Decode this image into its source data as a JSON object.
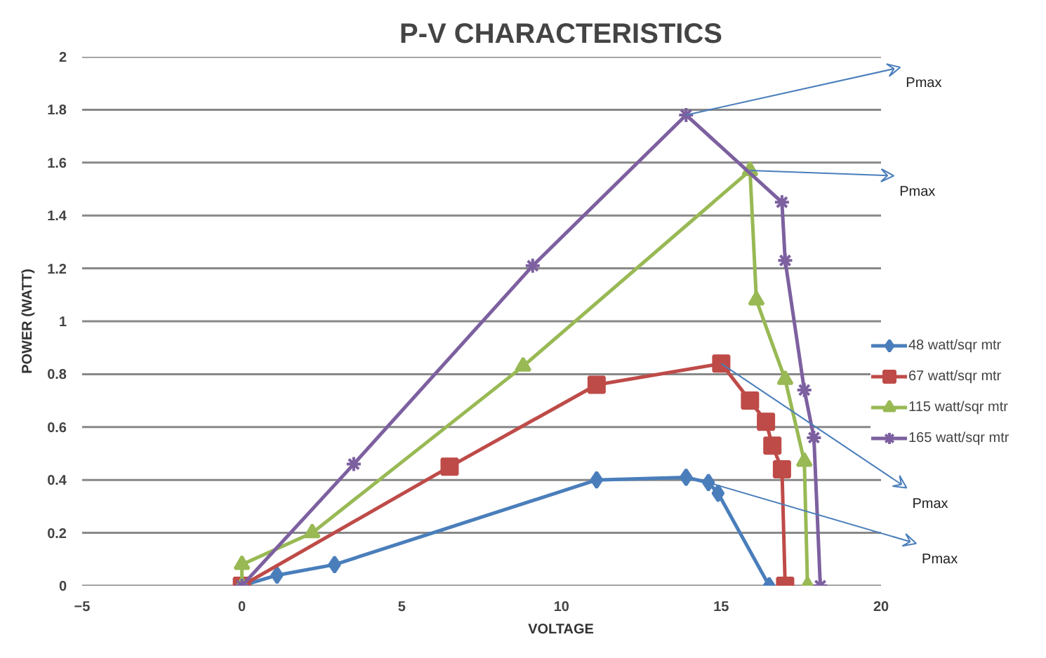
{
  "chart_data": {
    "type": "line",
    "title": "P-V CHARACTERISTICS",
    "xlabel": "VOLTAGE",
    "ylabel": "POWER (WATT)",
    "xlim": [
      -5,
      20
    ],
    "xticks": [
      -5,
      0,
      5,
      10,
      15,
      20
    ],
    "ylim": [
      0,
      2
    ],
    "yticks": [
      0,
      0.2,
      0.4,
      0.6,
      0.8,
      1,
      1.2,
      1.4,
      1.6,
      1.8,
      2
    ],
    "grid": "y",
    "legend": "right",
    "series": [
      {
        "name": "48 watt/sqr mtr",
        "color": "#4a7ebb",
        "marker": "diamond",
        "x": [
          0,
          1.1,
          2.9,
          11.1,
          13.9,
          14.6,
          14.9,
          16.5
        ],
        "values": [
          0,
          0.04,
          0.08,
          0.4,
          0.41,
          0.39,
          0.35,
          0
        ]
      },
      {
        "name": "67 watt/sqr mtr",
        "color": "#be4b48",
        "marker": "square",
        "x": [
          0,
          6.5,
          11.1,
          15,
          15.9,
          16.4,
          16.6,
          16.9,
          17
        ],
        "values": [
          0,
          0.45,
          0.76,
          0.84,
          0.7,
          0.62,
          0.53,
          0.44,
          0
        ]
      },
      {
        "name": "115 watt/sqr mtr",
        "color": "#98b954",
        "marker": "triangle",
        "x": [
          0,
          0,
          2.2,
          8.8,
          15.9,
          16.1,
          17,
          17.6,
          17.7
        ],
        "values": [
          0,
          0.08,
          0.2,
          0.83,
          1.57,
          1.08,
          0.78,
          0.47,
          0
        ]
      },
      {
        "name": "165 watt/sqr mtr",
        "color": "#7d60a0",
        "marker": "cross",
        "x": [
          0,
          3.5,
          9.1,
          13.9,
          16.9,
          17,
          17.6,
          17.9,
          18.1
        ],
        "values": [
          0,
          0.46,
          1.21,
          1.78,
          1.45,
          1.23,
          0.74,
          0.56,
          0
        ]
      }
    ],
    "annotations": [
      {
        "text": "Pmax",
        "x": 13.9,
        "y": 1.78
      },
      {
        "text": "Pmax",
        "x": 15.9,
        "y": 1.57
      },
      {
        "text": "Pmax",
        "x": 15,
        "y": 0.84
      },
      {
        "text": "Pmax",
        "x": 14.6,
        "y": 0.39
      }
    ]
  }
}
